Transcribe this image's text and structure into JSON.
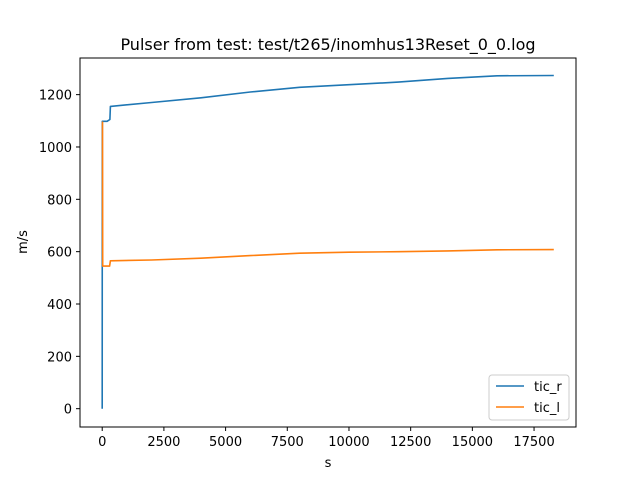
{
  "chart_data": {
    "type": "line",
    "title": "Pulser from test: test/t265/inomhus13Reset_0_0.log",
    "xlabel": "s",
    "ylabel": "m/s",
    "xlim": [
      -900,
      19200
    ],
    "ylim": [
      -70,
      1340
    ],
    "xticks": [
      0,
      2500,
      5000,
      7500,
      10000,
      12500,
      15000,
      17500
    ],
    "yticks": [
      0,
      200,
      400,
      600,
      800,
      1000,
      1200
    ],
    "grid": false,
    "legend_position": "lower right",
    "series": [
      {
        "name": "tic_r",
        "color": "#1f77b4",
        "points": [
          [
            0,
            0
          ],
          [
            5,
            1098
          ],
          [
            200,
            1098
          ],
          [
            310,
            1105
          ],
          [
            330,
            1155
          ],
          [
            2000,
            1170
          ],
          [
            4000,
            1188
          ],
          [
            6000,
            1210
          ],
          [
            8000,
            1228
          ],
          [
            10000,
            1238
          ],
          [
            12000,
            1248
          ],
          [
            14000,
            1262
          ],
          [
            16000,
            1272
          ],
          [
            18300,
            1273
          ]
        ]
      },
      {
        "name": "tic_l",
        "color": "#ff7f0e",
        "points": [
          [
            0,
            1095
          ],
          [
            10,
            1095
          ],
          [
            20,
            545
          ],
          [
            300,
            545
          ],
          [
            330,
            565
          ],
          [
            2000,
            568
          ],
          [
            4000,
            575
          ],
          [
            6000,
            585
          ],
          [
            8000,
            594
          ],
          [
            10000,
            598
          ],
          [
            12000,
            600
          ],
          [
            14000,
            603
          ],
          [
            16000,
            607
          ],
          [
            18300,
            608
          ]
        ]
      }
    ]
  }
}
